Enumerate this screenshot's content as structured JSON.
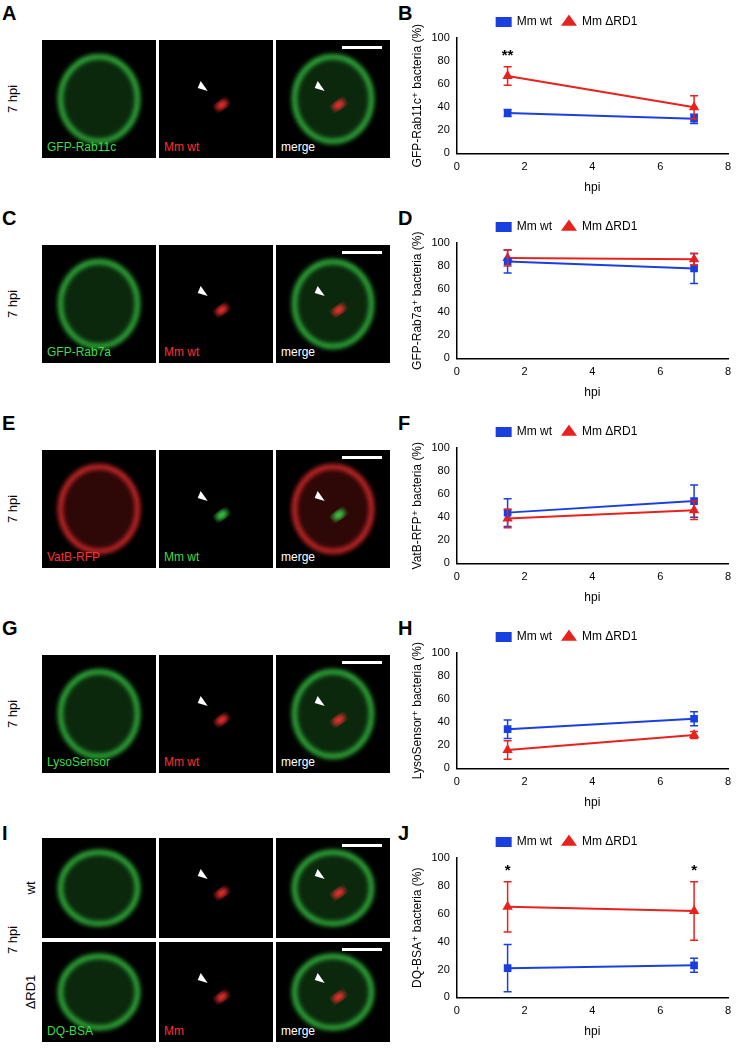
{
  "chart_data": [
    {
      "type": "line",
      "panel": "B",
      "x_label": "hpi",
      "y_label": "GFP-Rab11c⁺ bacteria (%)",
      "x": [
        1.5,
        7
      ],
      "xlim": [
        0,
        8
      ],
      "xticks": [
        0,
        2,
        4,
        6,
        8
      ],
      "ylim": [
        0,
        100
      ],
      "yticks": [
        0,
        20,
        40,
        60,
        80,
        100
      ],
      "grid": false,
      "legend": "top",
      "series": [
        {
          "name": "Mm wt",
          "color": "#1a3fe0",
          "marker": "square",
          "values": [
            35,
            30
          ],
          "errors": [
            3,
            4
          ]
        },
        {
          "name": "Mm ΔRD1",
          "color": "#e8221c",
          "marker": "triangle",
          "values": [
            67,
            40
          ],
          "errors": [
            8,
            10
          ]
        }
      ],
      "annotations": [
        {
          "text": "**",
          "x": 1.5
        }
      ]
    },
    {
      "type": "line",
      "panel": "D",
      "x_label": "hpi",
      "y_label": "GFP-Rab7a⁺ bacteria (%)",
      "x": [
        1.5,
        7
      ],
      "xlim": [
        0,
        8
      ],
      "xticks": [
        0,
        2,
        4,
        6,
        8
      ],
      "ylim": [
        0,
        100
      ],
      "yticks": [
        0,
        20,
        40,
        60,
        80,
        100
      ],
      "grid": false,
      "legend": "top",
      "series": [
        {
          "name": "Mm wt",
          "color": "#1a3fe0",
          "marker": "square",
          "values": [
            84,
            78
          ],
          "errors": [
            10,
            13
          ]
        },
        {
          "name": "Mm ΔRD1",
          "color": "#e8221c",
          "marker": "triangle",
          "values": [
            87,
            86
          ],
          "errors": [
            7,
            5
          ]
        }
      ],
      "annotations": []
    },
    {
      "type": "line",
      "panel": "F",
      "x_label": "hpi",
      "y_label": "VatB-RFP⁺ bacteria (%)",
      "x": [
        1.5,
        7
      ],
      "xlim": [
        0,
        8
      ],
      "xticks": [
        0,
        2,
        4,
        6,
        8
      ],
      "ylim": [
        0,
        100
      ],
      "yticks": [
        0,
        20,
        40,
        60,
        80,
        100
      ],
      "grid": false,
      "legend": "top",
      "series": [
        {
          "name": "Mm wt",
          "color": "#1a3fe0",
          "marker": "square",
          "values": [
            44,
            54
          ],
          "errors": [
            12,
            14
          ]
        },
        {
          "name": "Mm ΔRD1",
          "color": "#e8221c",
          "marker": "triangle",
          "values": [
            39,
            46
          ],
          "errors": [
            8,
            8
          ]
        }
      ],
      "annotations": []
    },
    {
      "type": "line",
      "panel": "H",
      "x_label": "hpi",
      "y_label": "LysoSensor⁺ bacteria (%)",
      "x": [
        1.5,
        7
      ],
      "xlim": [
        0,
        8
      ],
      "xticks": [
        0,
        2,
        4,
        6,
        8
      ],
      "ylim": [
        0,
        100
      ],
      "yticks": [
        0,
        20,
        40,
        60,
        80,
        100
      ],
      "grid": false,
      "legend": "top",
      "series": [
        {
          "name": "Mm wt",
          "color": "#1a3fe0",
          "marker": "square",
          "values": [
            34,
            43
          ],
          "errors": [
            8,
            6
          ]
        },
        {
          "name": "Mm ΔRD1",
          "color": "#e8221c",
          "marker": "triangle",
          "values": [
            16,
            29
          ],
          "errors": [
            8,
            3
          ]
        }
      ],
      "annotations": []
    },
    {
      "type": "line",
      "panel": "J",
      "x_label": "hpi",
      "y_label": "DQ-BSA⁺ bacteria (%)",
      "x": [
        1.5,
        7
      ],
      "xlim": [
        0,
        8
      ],
      "xticks": [
        0,
        2,
        4,
        6,
        8
      ],
      "ylim": [
        0,
        100
      ],
      "yticks": [
        0,
        20,
        40,
        60,
        80,
        100
      ],
      "grid": false,
      "legend": "top",
      "series": [
        {
          "name": "Mm wt",
          "color": "#1a3fe0",
          "marker": "square",
          "values": [
            21,
            23
          ],
          "errors": [
            17,
            5
          ]
        },
        {
          "name": "Mm ΔRD1",
          "color": "#e8221c",
          "marker": "triangle",
          "values": [
            65,
            62
          ],
          "errors": [
            18,
            21
          ]
        }
      ],
      "annotations": [
        {
          "text": "*",
          "x": 1.5
        },
        {
          "text": "*",
          "x": 7
        }
      ]
    }
  ],
  "image_panels": [
    {
      "panel": "A",
      "time": "7 hpi",
      "rows": [
        {
          "channels": [
            {
              "label": "GFP-Rab11c",
              "color": "#3ddc4a"
            },
            {
              "label": "Mm wt",
              "color": "#ff3030"
            }
          ],
          "merge_label": "merge"
        }
      ]
    },
    {
      "panel": "C",
      "time": "7 hpi",
      "rows": [
        {
          "channels": [
            {
              "label": "GFP-Rab7a",
              "color": "#3ddc4a"
            },
            {
              "label": "Mm wt",
              "color": "#ff3030"
            }
          ],
          "merge_label": "merge"
        }
      ]
    },
    {
      "panel": "E",
      "time": "7 hpi",
      "rows": [
        {
          "channels": [
            {
              "label": "VatB-RFP",
              "color": "#ff3030"
            },
            {
              "label": "Mm wt",
              "color": "#3ddc4a"
            }
          ],
          "merge_label": "merge"
        }
      ]
    },
    {
      "panel": "G",
      "time": "7 hpi",
      "rows": [
        {
          "channels": [
            {
              "label": "LysoSensor",
              "color": "#3ddc4a"
            },
            {
              "label": "Mm wt",
              "color": "#ff3030"
            }
          ],
          "merge_label": "merge"
        }
      ]
    },
    {
      "panel": "I",
      "time": "7 hpi",
      "rows": [
        {
          "row_label": "wt",
          "channels": [
            {
              "color": "#3ddc4a"
            },
            {
              "color": "#ff3030"
            }
          ]
        },
        {
          "row_label": "ΔRD1",
          "channels": [
            {
              "label": "DQ-BSA",
              "color": "#3ddc4a"
            },
            {
              "label": "Mm",
              "color": "#ff3030"
            }
          ],
          "merge_label": "merge"
        }
      ]
    }
  ]
}
